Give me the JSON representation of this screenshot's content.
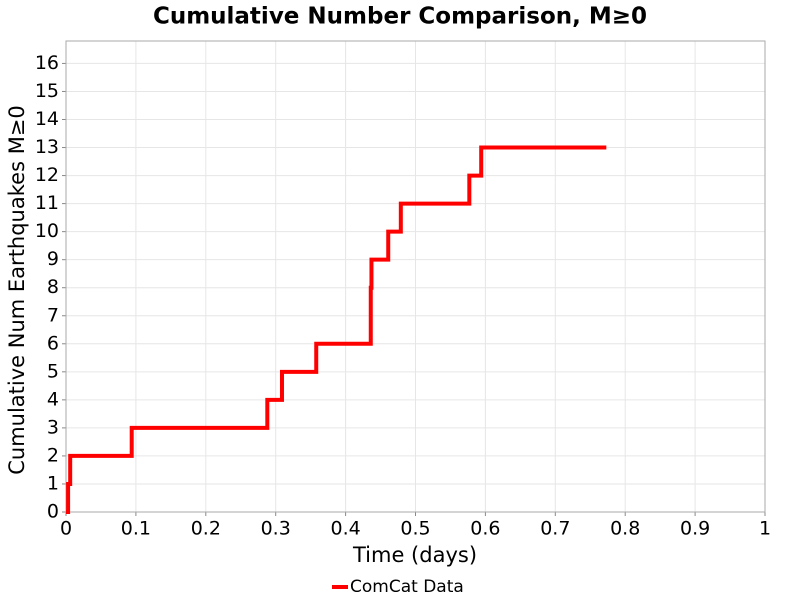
{
  "chart_data": {
    "type": "line",
    "step": true,
    "title": "Cumulative Number Comparison, M≥0",
    "x_label": "Time (days)",
    "y_label": "Cumulative Num Earthquakes M≥0",
    "x": [
      0,
      0.003,
      0.006,
      0.094,
      0.288,
      0.309,
      0.358,
      0.436,
      0.436,
      0.437,
      0.461,
      0.479,
      0.577,
      0.594,
      0.773
    ],
    "series": [
      {
        "name": "ComCat Data",
        "color": "#ff0000",
        "values": [
          0,
          1,
          2,
          3,
          4,
          5,
          6,
          7,
          8,
          9,
          10,
          11,
          12,
          13,
          13
        ]
      }
    ],
    "xlim": [
      0,
      1
    ],
    "xticks": [
      0,
      0.1,
      0.2,
      0.3,
      0.4,
      0.5,
      0.6,
      0.7,
      0.8,
      0.9,
      1
    ],
    "ylim": [
      0,
      16.8
    ],
    "yticks": [
      0,
      1,
      2,
      3,
      4,
      5,
      6,
      7,
      8,
      9,
      10,
      11,
      12,
      13,
      14,
      15,
      16
    ],
    "grid": true,
    "legend": "bottom"
  }
}
